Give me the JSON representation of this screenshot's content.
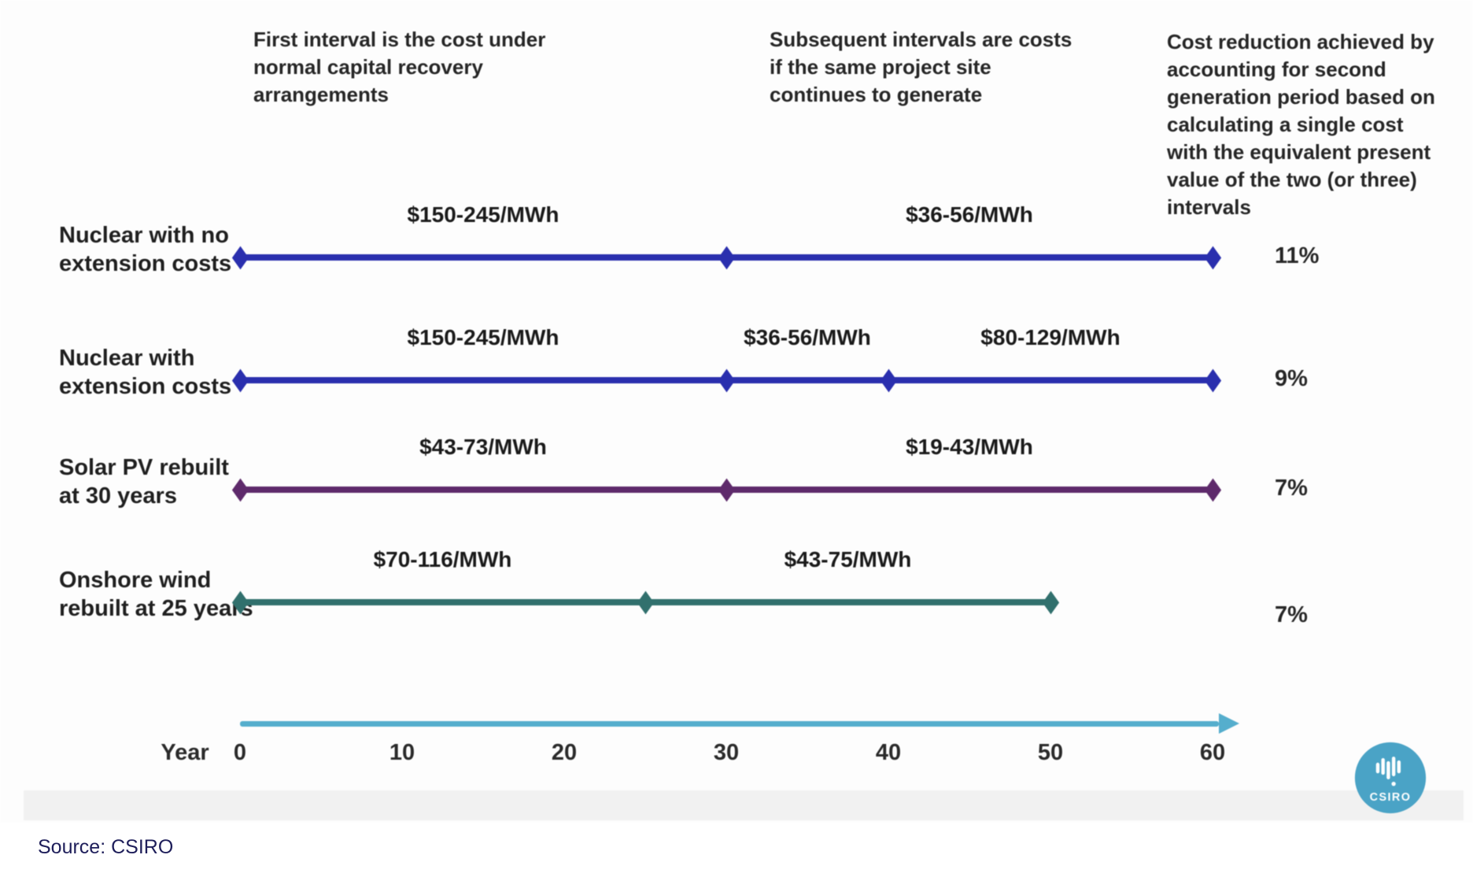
{
  "annotations": [
    {
      "text": "First interval is the cost under normal capital recovery arrangements"
    },
    {
      "text": "Subsequent intervals are costs if the same project site continues to generate"
    },
    {
      "text": "Cost reduction achieved by accounting for second generation period based on calculating a single cost with the equivalent present value of the two (or three) intervals"
    }
  ],
  "chart_data": {
    "type": "line",
    "title": "",
    "xlabel": "Year",
    "x_range": [
      0,
      60
    ],
    "x_ticks": [
      0,
      10,
      20,
      30,
      40,
      50,
      60
    ],
    "axis_color": "#55aecd",
    "grid": false,
    "legend_position": "none",
    "series": [
      {
        "name": "Nuclear with no extension costs",
        "label_lines": [
          "Nuclear with no",
          "extension costs"
        ],
        "color": "#2a2fae",
        "markers": [
          0,
          30,
          60
        ],
        "segments": [
          {
            "from": 0,
            "to": 30,
            "label": "$150-245/MWh"
          },
          {
            "from": 30,
            "to": 60,
            "label": "$36-56/MWh"
          }
        ],
        "cost_reduction": "11%"
      },
      {
        "name": "Nuclear with extension costs",
        "label_lines": [
          "Nuclear with",
          "extension costs"
        ],
        "color": "#2a2fae",
        "markers": [
          0,
          30,
          40,
          60
        ],
        "segments": [
          {
            "from": 0,
            "to": 30,
            "label": "$150-245/MWh"
          },
          {
            "from": 30,
            "to": 40,
            "label": "$36-56/MWh"
          },
          {
            "from": 40,
            "to": 60,
            "label": "$80-129/MWh"
          }
        ],
        "cost_reduction": "9%"
      },
      {
        "name": "Solar PV rebuilt at 30 years",
        "label_lines": [
          "Solar PV rebuilt",
          "at 30 years"
        ],
        "color": "#5e2a6b",
        "markers": [
          0,
          30,
          60
        ],
        "segments": [
          {
            "from": 0,
            "to": 30,
            "label": "$43-73/MWh"
          },
          {
            "from": 30,
            "to": 60,
            "label": "$19-43/MWh"
          }
        ],
        "cost_reduction": "7%"
      },
      {
        "name": "Onshore wind rebuilt at 25 years",
        "label_lines": [
          "Onshore wind",
          "rebuilt at 25 years"
        ],
        "color": "#31706d",
        "markers": [
          0,
          25,
          50
        ],
        "segments": [
          {
            "from": 0,
            "to": 25,
            "label": "$70-116/MWh"
          },
          {
            "from": 25,
            "to": 50,
            "label": "$43-75/MWh"
          }
        ],
        "cost_reduction": "7%"
      }
    ]
  },
  "logo": {
    "name": "CSIRO",
    "color": "#4aa3c6"
  },
  "source": {
    "text": "Source: CSIRO"
  }
}
